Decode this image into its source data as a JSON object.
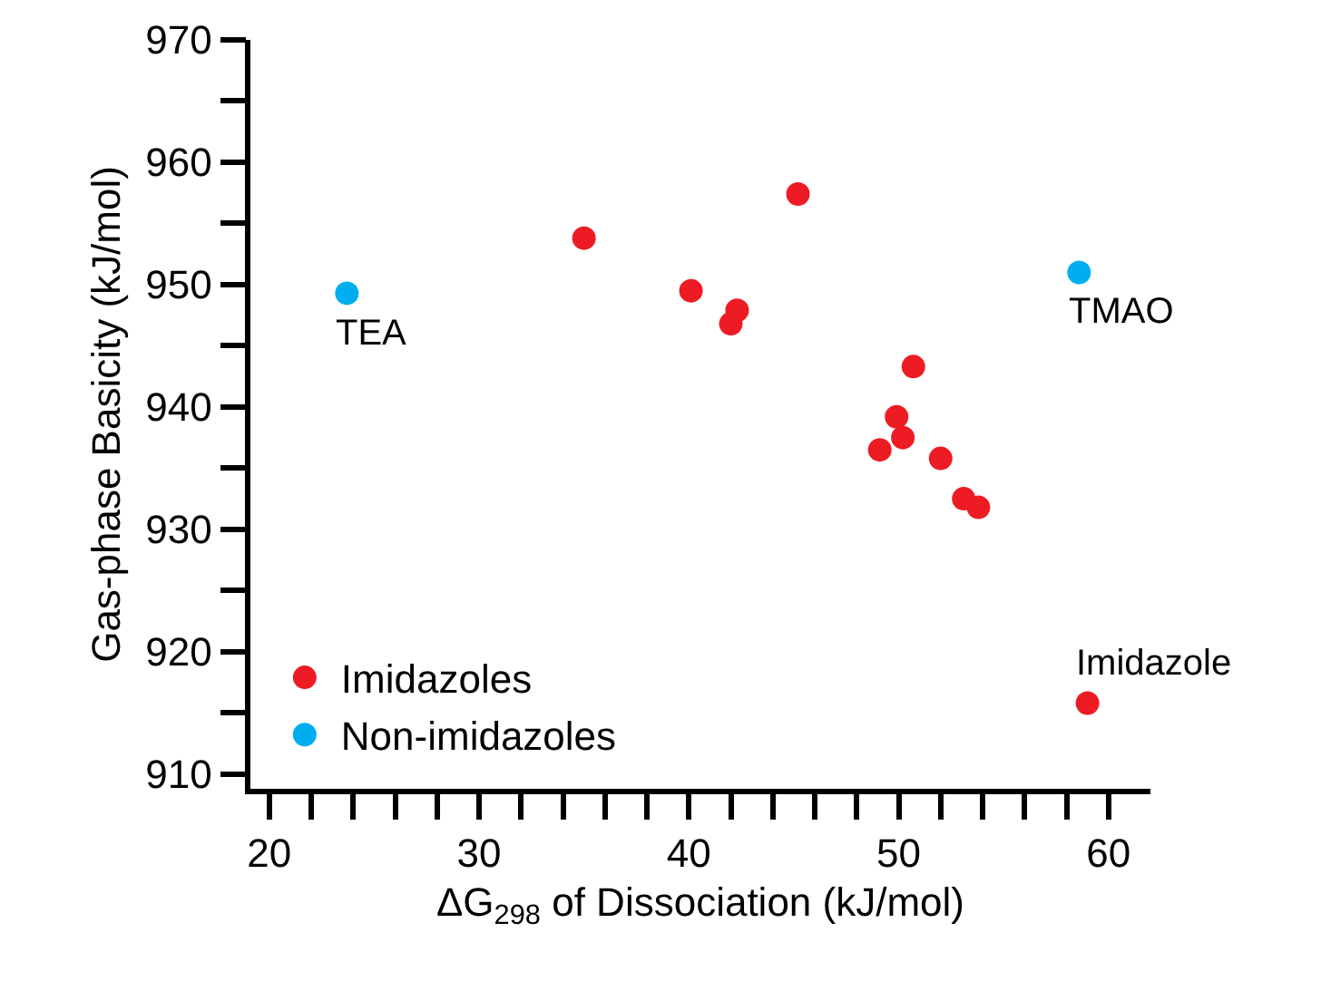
{
  "chart_data": {
    "type": "scatter",
    "xlabel": "ΔG$_{298}$ of Dissociation (kJ/mol)",
    "ylabel": "Gas-phase Basicity (kJ/mol)",
    "series": [
      {
        "name": "Imidazoles",
        "color": "#ed1c24",
        "x": [
          35,
          40.1,
          42,
          42.3,
          45.2,
          49.1,
          49.9,
          50.2,
          50.7,
          52,
          53.1,
          53.8,
          59
        ],
        "values": [
          953.8,
          949.5,
          946.8,
          947.9,
          957.4,
          936.5,
          939.2,
          937.5,
          943.3,
          935.8,
          932.5,
          931.8,
          915.8
        ]
      },
      {
        "name": "Non-imidazoles",
        "color": "#00aeef",
        "x": [
          23.7,
          58.6
        ],
        "values": [
          949.3,
          951
        ]
      }
    ],
    "annotations": [
      {
        "text": "TEA",
        "x": 23.7,
        "y": 949.3
      },
      {
        "text": "TMAO",
        "x": 58.6,
        "y": 951
      },
      {
        "text": "Imidazole",
        "x": 59,
        "y": 915.8
      }
    ],
    "xlim": [
      19.1,
      62
    ],
    "ylim": [
      908.8,
      970
    ],
    "xticks": [
      20,
      {
        "value": 22,
        "label": null
      },
      {
        "value": 24,
        "label": null
      },
      {
        "value": 26,
        "label": null
      },
      {
        "value": 28,
        "label": null
      },
      30,
      {
        "value": 32,
        "label": null
      },
      {
        "value": 34,
        "label": null
      },
      {
        "value": 36,
        "label": null
      },
      {
        "value": 38,
        "label": null
      },
      40,
      {
        "value": 42,
        "label": null
      },
      {
        "value": 44,
        "label": null
      },
      {
        "value": 46,
        "label": null
      },
      {
        "value": 48,
        "label": null
      },
      50,
      {
        "value": 52,
        "label": null
      },
      {
        "value": 54,
        "label": null
      },
      {
        "value": 56,
        "label": null
      },
      {
        "value": 58,
        "label": null
      },
      60
    ],
    "yticks": [
      910,
      {
        "value": 915,
        "label": null
      },
      920,
      {
        "value": 925,
        "label": null
      },
      930,
      {
        "value": 935,
        "label": null
      },
      940,
      {
        "value": 945,
        "label": null
      },
      950,
      {
        "value": 955,
        "label": null
      },
      960,
      {
        "value": 965,
        "label": null
      },
      970
    ],
    "grid": false,
    "legend": "bottom left",
    "marker": "circle"
  }
}
